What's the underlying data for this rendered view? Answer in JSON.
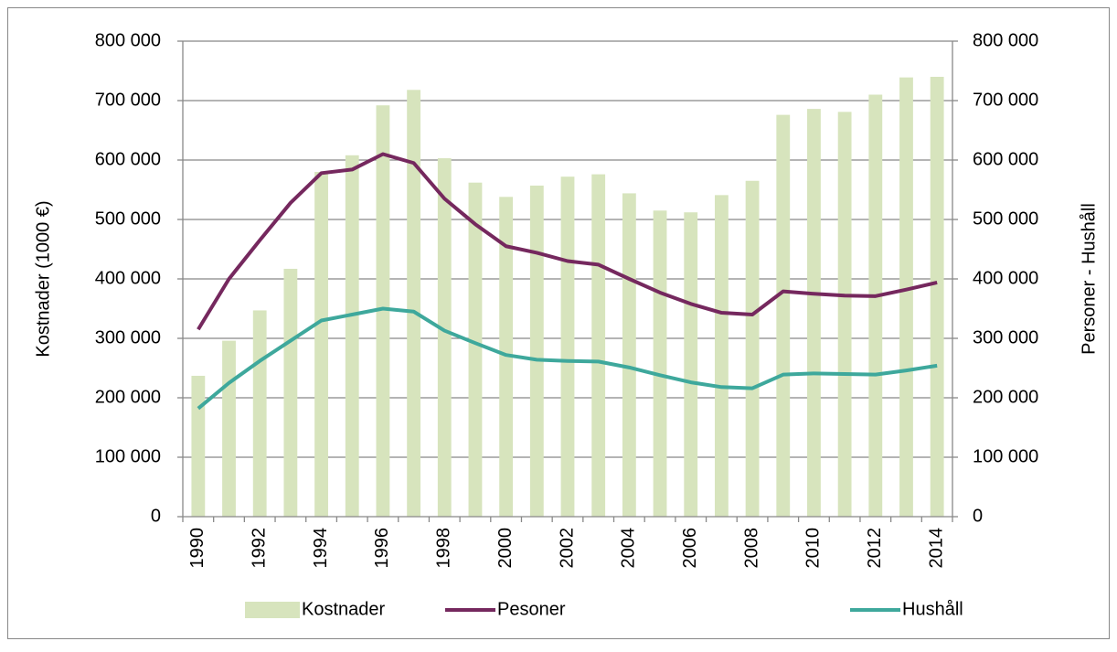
{
  "chart_data": {
    "type": "bar_line",
    "categories": [
      "1990",
      null,
      "1992",
      null,
      "1994",
      null,
      "1996",
      null,
      "1998",
      null,
      "2000",
      null,
      "2002",
      null,
      "2004",
      null,
      "2006",
      null,
      "2008",
      null,
      "2010",
      null,
      "2012",
      null,
      "2014"
    ],
    "ylabel": "Kostnader (1000 €)",
    "y2label": "Personer - Hushåll",
    "ylim": [
      0,
      800000
    ],
    "yticks": [
      0,
      {
        "value": 100000,
        "label": "100 000"
      },
      {
        "value": 200000,
        "label": "200 000"
      },
      {
        "value": 300000,
        "label": "300 000"
      },
      {
        "value": 400000,
        "label": "400 000"
      },
      {
        "value": 500000,
        "label": "500 000"
      },
      {
        "value": 600000,
        "label": "600 000"
      },
      {
        "value": 700000,
        "label": "700 000"
      },
      {
        "value": 800000,
        "label": "800 000"
      }
    ],
    "y2lim": [
      0,
      800000
    ],
    "y2ticks": [
      0,
      {
        "value": 100000,
        "label": "100 000"
      },
      {
        "value": 200000,
        "label": "200 000"
      },
      {
        "value": 300000,
        "label": "300 000"
      },
      {
        "value": 400000,
        "label": "400 000"
      },
      {
        "value": 500000,
        "label": "500 000"
      },
      {
        "value": 600000,
        "label": "600 000"
      },
      {
        "value": 700000,
        "label": "700 000"
      },
      {
        "value": 800000,
        "label": "800 000"
      }
    ],
    "grid": true,
    "legend": "bottom",
    "series": [
      {
        "name": "Kostnader",
        "type": "bar",
        "color": "#d7e4bd",
        "values": [
          237000,
          296000,
          347000,
          417000,
          580000,
          608000,
          692000,
          718000,
          603000,
          562000,
          538000,
          557000,
          572000,
          576000,
          544000,
          515000,
          512000,
          541000,
          565000,
          676000,
          686000,
          681000,
          710000,
          739000,
          740000
        ]
      },
      {
        "name": "Pesoner",
        "type": "line",
        "axis": "y2",
        "color": "#75285e",
        "values": [
          315000,
          400000,
          465000,
          528000,
          578000,
          584000,
          610000,
          595000,
          535000,
          492000,
          455000,
          444000,
          430000,
          424000,
          400000,
          377000,
          358000,
          343000,
          340000,
          379000,
          375000,
          372000,
          371000,
          382000,
          394000
        ]
      },
      {
        "name": "Hushåll",
        "type": "line",
        "axis": "y2",
        "color": "#3ea89c",
        "values": [
          182000,
          225000,
          262000,
          296000,
          330000,
          340000,
          350000,
          345000,
          313000,
          292000,
          272000,
          264000,
          262000,
          261000,
          251000,
          238000,
          226000,
          218000,
          216000,
          239000,
          241000,
          240000,
          239000,
          246000,
          254000
        ]
      }
    ]
  }
}
